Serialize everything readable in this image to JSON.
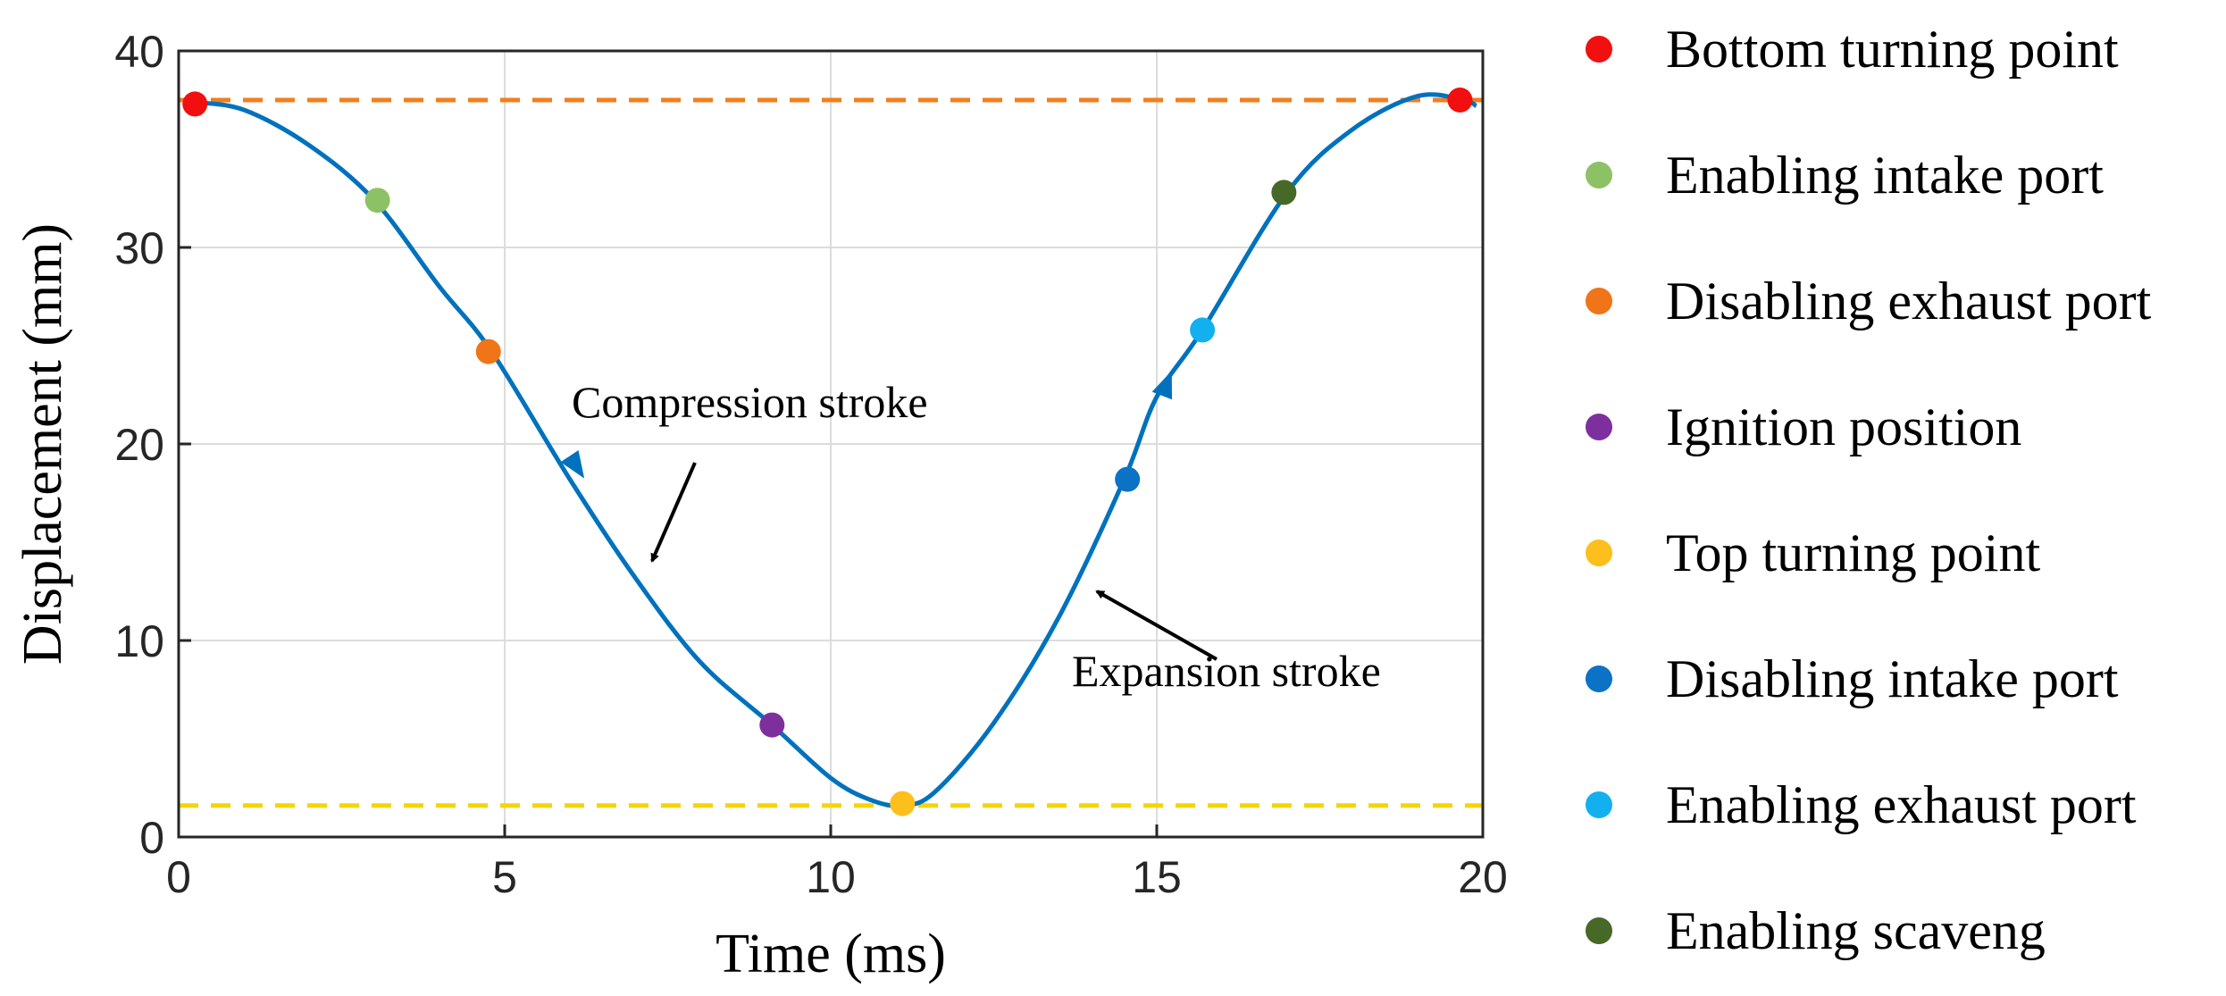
{
  "chart_data": {
    "type": "line",
    "xlabel": "Time (ms)",
    "ylabel": "Displacement (mm)",
    "xlim": [
      0,
      20
    ],
    "ylim": [
      0,
      40
    ],
    "xticks": [
      0,
      5,
      10,
      15,
      20
    ],
    "yticks": [
      0,
      10,
      20,
      30,
      40
    ],
    "grid": true,
    "series": [
      {
        "name": "Displacement",
        "color": "#0072BD",
        "x": [
          0.2,
          1.0,
          2.0,
          3.0,
          4.0,
          4.8,
          6.0,
          7.0,
          8.0,
          9.1,
          10.0,
          10.6,
          11.1,
          11.6,
          12.5,
          13.5,
          14.5,
          15.0,
          15.7,
          17.0,
          18.0,
          19.0,
          19.7,
          19.9
        ],
        "y": [
          37.4,
          37.0,
          35.2,
          32.4,
          28.0,
          24.7,
          18.2,
          13.2,
          8.9,
          5.7,
          3.0,
          1.9,
          1.6,
          2.3,
          5.8,
          11.2,
          18.2,
          22.4,
          25.8,
          32.8,
          36.0,
          37.7,
          37.5,
          37.2
        ]
      }
    ],
    "reference_lines": [
      {
        "name": "max-displacement",
        "y": 37.5,
        "color": "#F07F1E",
        "style": "dashed"
      },
      {
        "name": "min-displacement",
        "y": 1.6,
        "color": "#F5D500",
        "style": "dashed"
      }
    ],
    "markers": [
      {
        "label": "Bottom turning point",
        "color": "#F20F0F",
        "points": [
          {
            "x": 0.25,
            "y": 37.3
          },
          {
            "x": 19.65,
            "y": 37.5
          }
        ]
      },
      {
        "label": "Enabling intake port",
        "color": "#8CC265",
        "points": [
          {
            "x": 3.05,
            "y": 32.4
          }
        ]
      },
      {
        "label": "Disabling exhaust port",
        "color": "#F07418",
        "points": [
          {
            "x": 4.75,
            "y": 24.7
          }
        ]
      },
      {
        "label": "Ignition position",
        "color": "#7E2F9E",
        "points": [
          {
            "x": 9.1,
            "y": 5.7
          }
        ]
      },
      {
        "label": "Top turning point",
        "color": "#FDBF1C",
        "points": [
          {
            "x": 11.1,
            "y": 1.7
          }
        ]
      },
      {
        "label": "Disabling intake port",
        "color": "#0B72C6",
        "points": [
          {
            "x": 14.55,
            "y": 18.2
          }
        ]
      },
      {
        "label": "Enabling exhaust port",
        "color": "#12B0EE",
        "points": [
          {
            "x": 15.7,
            "y": 25.8
          }
        ]
      },
      {
        "label": "Enabling scaveng",
        "color": "#466927",
        "points": [
          {
            "x": 16.95,
            "y": 32.8
          }
        ]
      }
    ],
    "annotations": [
      {
        "text": "Compression stroke"
      },
      {
        "text": "Expansion stroke"
      }
    ],
    "legend_position": "right"
  }
}
